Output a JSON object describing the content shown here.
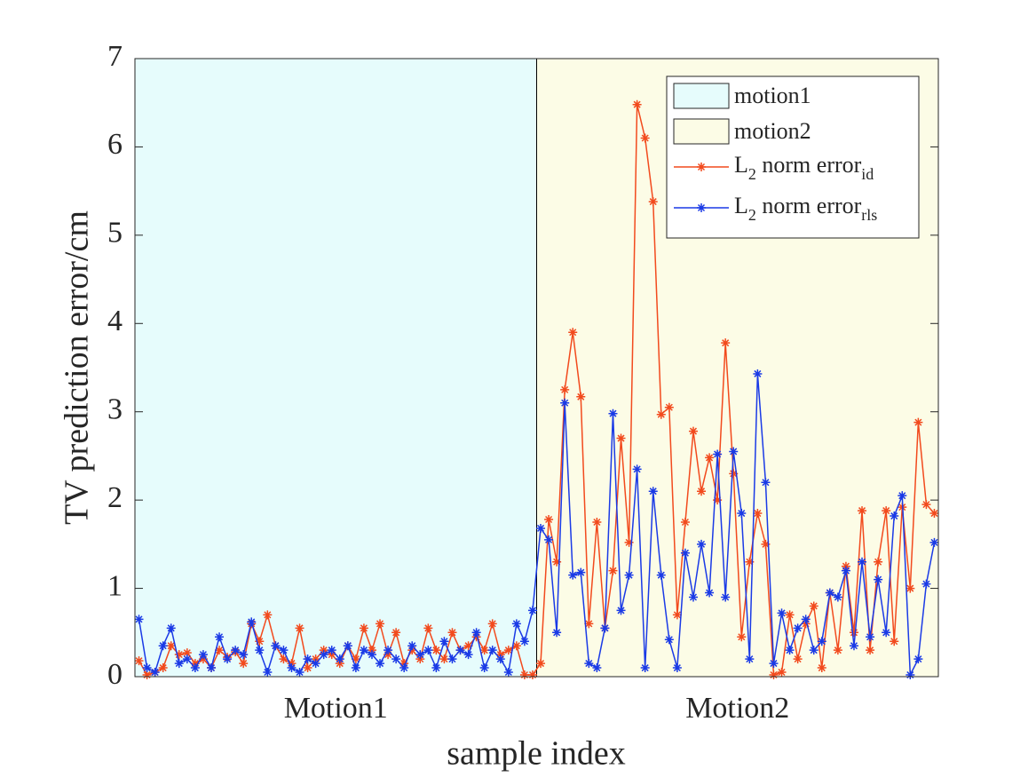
{
  "chart_data": {
    "type": "line",
    "xlabel": "sample index",
    "ylabel": "TV prediction error/cm",
    "categories": [
      "Motion1",
      "Motion2"
    ],
    "regions": [
      {
        "name": "motion1",
        "color": "#e6fcfc"
      },
      {
        "name": "motion2",
        "color": "#fcfce6"
      }
    ],
    "ylim": [
      0,
      7
    ],
    "yticks": [
      0,
      1,
      2,
      3,
      4,
      5,
      6,
      7
    ],
    "legend": "upper right",
    "series": [
      {
        "legend_label": [
          {
            "text": "L"
          },
          {
            "text": "2",
            "sub": true
          },
          {
            "text": " norm error"
          },
          {
            "text": "id",
            "sub": true
          }
        ],
        "color": "#f24a1d",
        "values": [
          [
            0.18,
            0.02,
            0.05,
            0.1,
            0.35,
            0.25,
            0.27,
            0.15,
            0.2,
            0.1,
            0.3,
            0.22,
            0.28,
            0.15,
            0.6,
            0.4,
            0.7,
            0.35,
            0.2,
            0.15,
            0.55,
            0.1,
            0.2,
            0.3,
            0.25,
            0.15,
            0.35,
            0.2,
            0.55,
            0.3,
            0.6,
            0.25,
            0.5,
            0.15,
            0.3,
            0.2,
            0.55,
            0.3,
            0.2,
            0.5,
            0.3,
            0.35,
            0.45,
            0.3,
            0.6,
            0.25,
            0.3,
            0.35,
            0.02,
            0.02
          ],
          [
            0.15,
            1.78,
            1.3,
            3.25,
            3.9,
            3.17,
            0.6,
            1.75,
            0.55,
            1.2,
            2.7,
            1.52,
            6.48,
            6.1,
            5.38,
            2.97,
            3.05,
            0.7,
            1.75,
            2.78,
            2.1,
            2.48,
            2.0,
            3.78,
            2.3,
            0.45,
            1.3,
            1.85,
            1.5,
            0.02,
            0.05,
            0.7,
            0.2,
            0.6,
            0.8,
            0.1,
            0.95,
            0.3,
            1.25,
            0.5,
            1.88,
            0.3,
            1.3,
            1.88,
            0.4,
            1.92,
            1.0,
            2.88,
            1.95,
            1.85
          ]
        ]
      },
      {
        "legend_label": [
          {
            "text": "L"
          },
          {
            "text": "2",
            "sub": true
          },
          {
            "text": " norm error"
          },
          {
            "text": "rls",
            "sub": true
          }
        ],
        "color": "#1a3ae6",
        "values": [
          [
            0.65,
            0.1,
            0.05,
            0.35,
            0.55,
            0.15,
            0.2,
            0.1,
            0.25,
            0.1,
            0.45,
            0.2,
            0.3,
            0.25,
            0.62,
            0.3,
            0.05,
            0.35,
            0.3,
            0.1,
            0.05,
            0.2,
            0.15,
            0.25,
            0.3,
            0.2,
            0.35,
            0.1,
            0.3,
            0.25,
            0.15,
            0.3,
            0.2,
            0.1,
            0.35,
            0.25,
            0.3,
            0.1,
            0.4,
            0.2,
            0.3,
            0.25,
            0.5,
            0.1,
            0.3,
            0.2,
            0.05,
            0.6,
            0.4,
            0.75
          ],
          [
            1.68,
            1.55,
            0.5,
            3.1,
            1.15,
            1.18,
            0.15,
            0.1,
            0.55,
            2.98,
            0.75,
            1.15,
            2.35,
            0.1,
            2.1,
            1.15,
            0.42,
            0.1,
            1.4,
            0.9,
            1.5,
            0.95,
            2.52,
            0.9,
            2.55,
            1.85,
            0.2,
            3.43,
            2.2,
            0.15,
            0.72,
            0.3,
            0.55,
            0.65,
            0.3,
            0.4,
            0.95,
            0.9,
            1.2,
            0.35,
            1.3,
            0.45,
            1.1,
            0.5,
            1.82,
            2.05,
            0.02,
            0.2,
            1.05,
            1.52
          ]
        ]
      }
    ]
  }
}
